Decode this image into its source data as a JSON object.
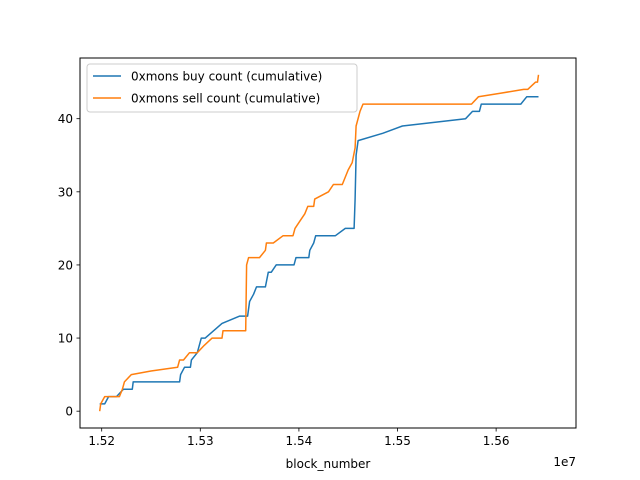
{
  "chart_data": {
    "type": "line",
    "title": "",
    "xlabel": "block_number",
    "ylabel": "",
    "x_offset_label": "1e7",
    "xlim": [
      15178000,
      15681000
    ],
    "ylim": [
      -2.3,
      48.3
    ],
    "x_ticks": [
      15200000,
      15300000,
      15400000,
      15500000,
      15600000
    ],
    "x_tick_labels": [
      "1.52",
      "1.53",
      "1.54",
      "1.55",
      "1.56"
    ],
    "y_ticks": [
      0,
      10,
      20,
      30,
      40
    ],
    "y_tick_labels": [
      "0",
      "10",
      "20",
      "30",
      "40"
    ],
    "grid": false,
    "legend_position": "top-left",
    "series": [
      {
        "name": "0xmons buy count (cumulative)",
        "color": "#1f77b4",
        "points": [
          [
            15198000,
            1
          ],
          [
            15203000,
            1
          ],
          [
            15207000,
            2
          ],
          [
            15215000,
            2
          ],
          [
            15222000,
            3
          ],
          [
            15231000,
            3
          ],
          [
            15232000,
            4
          ],
          [
            15279000,
            4
          ],
          [
            15280000,
            5
          ],
          [
            15284000,
            6
          ],
          [
            15290000,
            6
          ],
          [
            15291000,
            7
          ],
          [
            15297000,
            8
          ],
          [
            15301000,
            10
          ],
          [
            15305000,
            10
          ],
          [
            15322000,
            12
          ],
          [
            15340000,
            13
          ],
          [
            15348000,
            13
          ],
          [
            15350000,
            15
          ],
          [
            15354000,
            16
          ],
          [
            15357000,
            17
          ],
          [
            15366000,
            17
          ],
          [
            15369000,
            19
          ],
          [
            15372000,
            19
          ],
          [
            15377000,
            20
          ],
          [
            15395000,
            20
          ],
          [
            15397000,
            21
          ],
          [
            15410000,
            21
          ],
          [
            15411000,
            22
          ],
          [
            15415000,
            23
          ],
          [
            15417000,
            24
          ],
          [
            15437000,
            24
          ],
          [
            15447000,
            25
          ],
          [
            15456000,
            25
          ],
          [
            15457000,
            29
          ],
          [
            15458000,
            35
          ],
          [
            15459000,
            36
          ],
          [
            15460000,
            37
          ],
          [
            15485000,
            38
          ],
          [
            15505000,
            39
          ],
          [
            15569000,
            40
          ],
          [
            15576000,
            41
          ],
          [
            15583000,
            41
          ],
          [
            15585000,
            42
          ],
          [
            15625000,
            42
          ],
          [
            15631000,
            43
          ],
          [
            15643000,
            43
          ]
        ]
      },
      {
        "name": "0xmons sell count (cumulative)",
        "color": "#ff7f0e",
        "points": [
          [
            15198000,
            0
          ],
          [
            15199000,
            1
          ],
          [
            15203000,
            2
          ],
          [
            15209000,
            2
          ],
          [
            15212000,
            2
          ],
          [
            15218000,
            2
          ],
          [
            15221000,
            3
          ],
          [
            15223000,
            4
          ],
          [
            15230000,
            5
          ],
          [
            15250000,
            5.5
          ],
          [
            15277000,
            6
          ],
          [
            15279000,
            7
          ],
          [
            15283000,
            7
          ],
          [
            15289000,
            8
          ],
          [
            15294000,
            8
          ],
          [
            15297000,
            8
          ],
          [
            15304000,
            9
          ],
          [
            15312000,
            10
          ],
          [
            15322000,
            10
          ],
          [
            15323000,
            11
          ],
          [
            15346000,
            11
          ],
          [
            15347000,
            20
          ],
          [
            15349000,
            21
          ],
          [
            15360000,
            21
          ],
          [
            15366000,
            22
          ],
          [
            15367000,
            23
          ],
          [
            15374000,
            23
          ],
          [
            15384000,
            24
          ],
          [
            15394000,
            24
          ],
          [
            15396000,
            25
          ],
          [
            15401000,
            26
          ],
          [
            15406000,
            27
          ],
          [
            15409000,
            28
          ],
          [
            15415000,
            28
          ],
          [
            15416000,
            29
          ],
          [
            15430000,
            30
          ],
          [
            15435000,
            31
          ],
          [
            15444000,
            31
          ],
          [
            15450000,
            33
          ],
          [
            15454000,
            34
          ],
          [
            15457000,
            36
          ],
          [
            15458000,
            39
          ],
          [
            15462000,
            41
          ],
          [
            15465000,
            42
          ],
          [
            15575000,
            42
          ],
          [
            15582000,
            43
          ],
          [
            15605000,
            43.5
          ],
          [
            15628000,
            44
          ],
          [
            15632000,
            44
          ],
          [
            15640000,
            45
          ],
          [
            15642000,
            45
          ],
          [
            15643000,
            46
          ]
        ]
      }
    ]
  }
}
